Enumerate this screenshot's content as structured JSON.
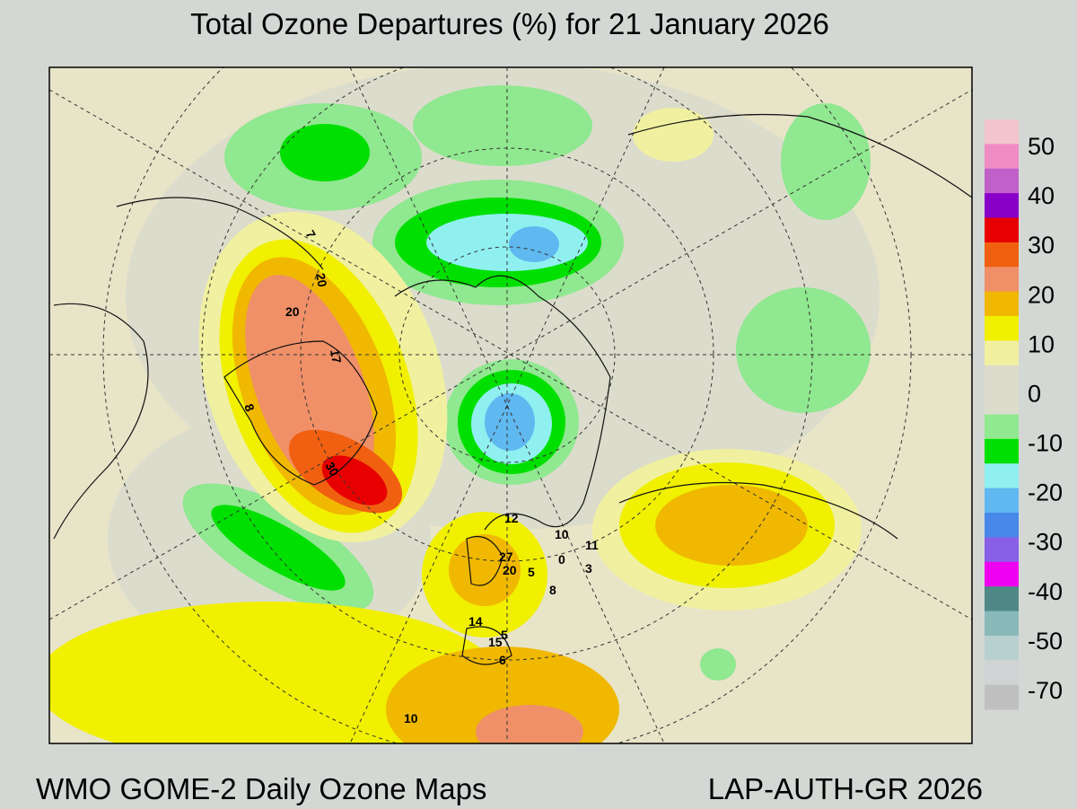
{
  "header": {
    "title": "Total Ozone Departures (%) for 21 January 2026"
  },
  "footer": {
    "left": "WMO GOME-2 Daily Ozone Maps",
    "right": "LAP-AUTH-GR 2026"
  },
  "colorbar": {
    "labels": [
      50,
      40,
      30,
      20,
      10,
      0,
      -10,
      -20,
      -30,
      -40,
      -50,
      -70
    ],
    "colors": [
      "#f2c4cc",
      "#f08cc4",
      "#c060c8",
      "#8800c8",
      "#e80000",
      "#f06010",
      "#f09068",
      "#f0b800",
      "#f0f000",
      "#f0f0a0",
      "#dcdccc",
      "#dcdccc",
      "#90e890",
      "#00e000",
      "#90f0f0",
      "#60b8f0",
      "#4888e8",
      "#8860e8",
      "#f000f0",
      "#508888",
      "#88b8b8",
      "#b8d0d0",
      "#d0d4d4",
      "#c0c0c0"
    ]
  },
  "map": {
    "stations": [
      "20",
      "20",
      "17",
      "8",
      "30",
      "12",
      "10",
      "11",
      "0",
      "3",
      "27",
      "20",
      "5",
      "8",
      "14",
      "5",
      "15",
      "6",
      "10",
      "7"
    ]
  }
}
